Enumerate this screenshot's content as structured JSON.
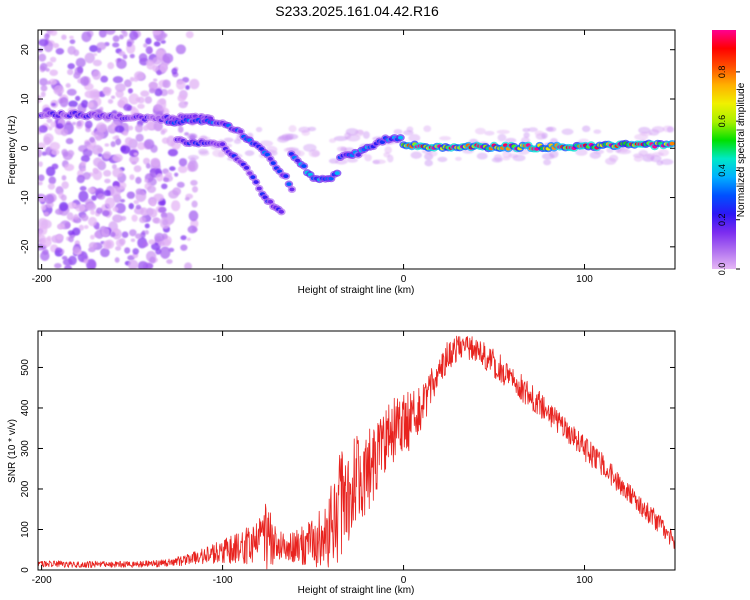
{
  "title": "S233.2025.161.04.42.R16",
  "colors": {
    "snr_line": "#e8231f",
    "spectrogram_low": "#9b3de6",
    "colorbar": [
      "#e5b8f5",
      "#b070f0",
      "#7b2cf0",
      "#2c18f5",
      "#0050ff",
      "#00b0ff",
      "#00e8c8",
      "#00e000",
      "#a8f000",
      "#f0f000",
      "#ffb000",
      "#ff5000",
      "#ff0000",
      "#ff0090"
    ]
  },
  "chart_data": [
    {
      "type": "heatmap",
      "name": "spectrogram",
      "xlabel": "Height of straight line (km)",
      "ylabel": "Frequency (Hz)",
      "xlim": [
        -202,
        150
      ],
      "ylim": [
        -24.5,
        24
      ],
      "xticks": [
        -200,
        -100,
        0,
        100
      ],
      "xtick_labels": [
        "-200",
        "-100",
        "0",
        "100"
      ],
      "yticks": [
        -20,
        -10,
        0,
        10,
        20
      ],
      "ytick_labels": [
        "-20",
        "-10",
        "0",
        "10",
        "20"
      ],
      "colorbar": {
        "label": "Normalized spectral amplitude",
        "range": [
          0,
          0.97
        ],
        "ticks": [
          0.0,
          0.2,
          0.4,
          0.6,
          0.8
        ],
        "tick_labels": [
          "0.0",
          "0.2",
          "0.4",
          "0.6",
          "0.8"
        ]
      },
      "noise_region_x": [
        -202,
        -115
      ],
      "ridges": [
        {
          "points": [
            [
              -200,
              7
            ],
            [
              -180,
              6.8
            ],
            [
              -160,
              6.5
            ],
            [
              -140,
              6
            ],
            [
              -120,
              6.2
            ],
            [
              -105,
              6
            ]
          ],
          "amplitude": 0.15
        },
        {
          "points": [
            [
              -130,
              5.5
            ],
            [
              -115,
              5.5
            ],
            [
              -100,
              5
            ],
            [
              -90,
              3
            ],
            [
              -80,
              0.5
            ],
            [
              -72,
              -3
            ],
            [
              -65,
              -6
            ],
            [
              -60,
              -10
            ]
          ],
          "amplitude": 0.25
        },
        {
          "points": [
            [
              -125,
              1.5
            ],
            [
              -110,
              1
            ],
            [
              -100,
              0.5
            ],
            [
              -92,
              -2
            ],
            [
              -85,
              -5
            ],
            [
              -78,
              -9
            ],
            [
              -72,
              -12
            ],
            [
              -66,
              -13.5
            ]
          ],
          "amplitude": 0.2
        },
        {
          "points": [
            [
              -62,
              -1.5
            ],
            [
              -55,
              -4
            ],
            [
              -48,
              -6.5
            ],
            [
              -40,
              -6
            ],
            [
              -35,
              -4.5
            ]
          ],
          "amplitude": 0.3
        },
        {
          "points": [
            [
              -35,
              -2
            ],
            [
              -25,
              -1
            ],
            [
              -15,
              1
            ],
            [
              -5,
              2.5
            ],
            [
              0,
              1.5
            ]
          ],
          "amplitude": 0.3
        },
        {
          "points": [
            [
              0,
              0.5
            ],
            [
              20,
              0.3
            ],
            [
              50,
              0.3
            ],
            [
              80,
              0.2
            ],
            [
              110,
              0.5
            ],
            [
              150,
              0.8
            ]
          ],
          "amplitude": 0.82
        }
      ]
    },
    {
      "type": "line",
      "name": "snr",
      "xlabel": "Height of straight line (km)",
      "ylabel": "SNR (10 * v/v)",
      "xlim": [
        -202,
        150
      ],
      "ylim": [
        0,
        590
      ],
      "xticks": [
        -200,
        -100,
        0,
        100
      ],
      "xtick_labels": [
        "-200",
        "-100",
        "0",
        "100"
      ],
      "yticks": [
        0,
        100,
        200,
        300,
        400,
        500
      ],
      "ytick_labels": [
        "0",
        "100",
        "200",
        "300",
        "400",
        "500"
      ],
      "series": [
        {
          "x": [
            -200,
            -190,
            -180,
            -170,
            -160,
            -150,
            -140,
            -130,
            -120,
            -110,
            -100,
            -90,
            -80,
            -75,
            -70,
            -60,
            -50,
            -45,
            -40,
            -35,
            -30,
            -25,
            -20,
            -15,
            -10,
            -5,
            0,
            5,
            10,
            15,
            20,
            25,
            30,
            35,
            40,
            50,
            60,
            70,
            80,
            90,
            100,
            110,
            120,
            130,
            140,
            150
          ],
          "y": [
            15,
            15,
            14,
            14,
            14,
            14,
            15,
            18,
            25,
            35,
            45,
            55,
            70,
            90,
            60,
            55,
            70,
            90,
            120,
            150,
            180,
            220,
            250,
            290,
            320,
            345,
            370,
            370,
            400,
            450,
            500,
            530,
            545,
            550,
            545,
            510,
            470,
            430,
            390,
            345,
            300,
            260,
            210,
            165,
            120,
            70
          ],
          "noise": [
            8,
            8,
            8,
            8,
            8,
            8,
            8,
            10,
            14,
            20,
            30,
            40,
            55,
            90,
            40,
            40,
            60,
            90,
            110,
            140,
            130,
            120,
            110,
            110,
            80,
            80,
            70,
            80,
            60,
            50,
            40,
            40,
            35,
            30,
            30,
            35,
            35,
            35,
            30,
            30,
            30,
            30,
            25,
            25,
            25,
            20
          ]
        }
      ]
    }
  ]
}
